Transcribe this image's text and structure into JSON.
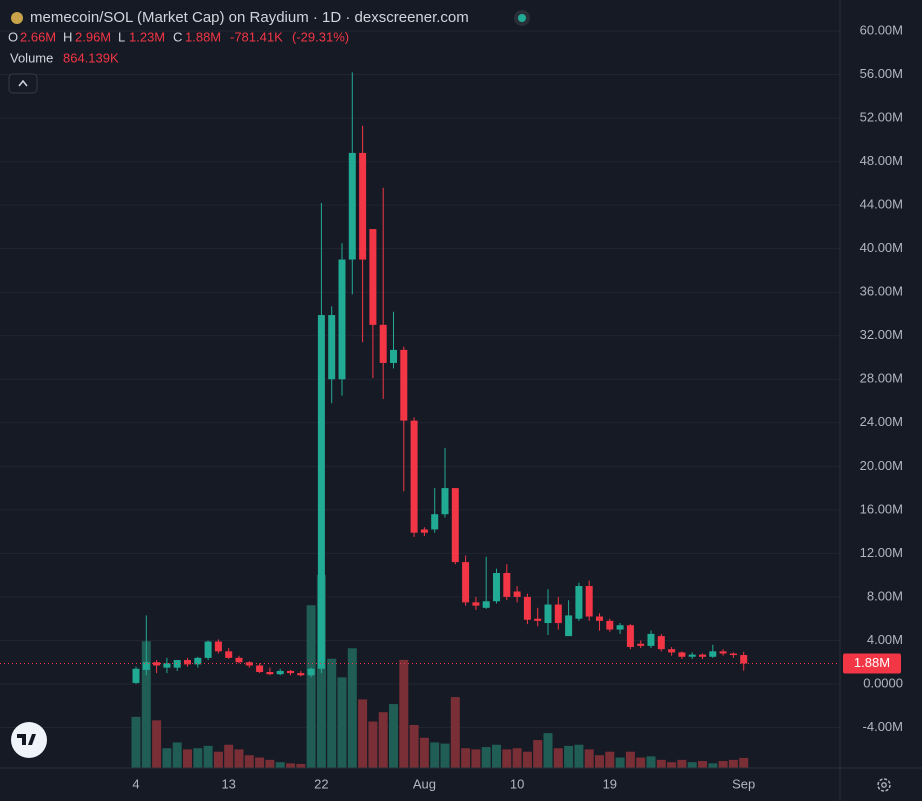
{
  "chart_data": {
    "type": "candlestick",
    "title": "memecoin/SOL (Market Cap) on Raydium · 1D · dexscreener.com",
    "legend_keys": {
      "open": "O",
      "high": "H",
      "low": "L",
      "close": "C",
      "volume": "Volume"
    },
    "legend": {
      "open": {
        "value": 2.66,
        "label": "2.66M"
      },
      "high": {
        "value": 2.96,
        "label": "2.96M"
      },
      "low": {
        "value": 1.23,
        "label": "1.23M"
      },
      "close": {
        "value": 1.88,
        "label": "1.88M"
      },
      "change": {
        "value": -0.78141,
        "label": "-781.41K"
      },
      "change_pct": {
        "value": -29.31,
        "label": "(-29.31%)"
      },
      "volume": {
        "value": 0.864139,
        "label": "864.139K"
      }
    },
    "last_price": {
      "value": 1.88,
      "label": "1.88M"
    },
    "up_color": "#22ab94",
    "down_color": "#f23645",
    "volume_up_color": "#1f5d55",
    "volume_down_color": "#7a2e35",
    "categories": [
      "4",
      null,
      null,
      null,
      null,
      null,
      null,
      null,
      null,
      "13",
      null,
      null,
      null,
      null,
      null,
      null,
      null,
      null,
      "22",
      null,
      null,
      null,
      null,
      null,
      null,
      null,
      null,
      null,
      "Aug",
      null,
      null,
      null,
      null,
      null,
      null,
      null,
      null,
      "10",
      null,
      null,
      null,
      null,
      null,
      null,
      null,
      null,
      "19",
      null,
      null,
      null,
      null,
      null,
      null,
      null,
      null,
      null,
      null,
      null,
      null,
      "Sep"
    ],
    "open": [
      0.1,
      1.3,
      2.0,
      1.5,
      1.5,
      2.2,
      1.8,
      2.4,
      3.9,
      3.0,
      2.4,
      2.0,
      1.7,
      1.1,
      0.9,
      1.2,
      1.0,
      0.8,
      1.4,
      28.0,
      28.0,
      39.0,
      48.8,
      41.8,
      33.0,
      29.5,
      30.7,
      24.2,
      14.2,
      14.2,
      15.6,
      18.0,
      11.2,
      7.5,
      7.0,
      7.6,
      10.2,
      8.5,
      8.0,
      6.0,
      5.6,
      7.3,
      4.4,
      6.0,
      9.0,
      6.2,
      5.8,
      5.0,
      5.4,
      3.7,
      3.5,
      4.4,
      3.2,
      2.9,
      2.5,
      2.7,
      2.5,
      3.0,
      2.8,
      2.66
    ],
    "high": [
      1.6,
      6.3,
      2.2,
      2.4,
      2.2,
      2.4,
      2.5,
      4.0,
      4.1,
      3.3,
      2.6,
      2.1,
      1.9,
      1.5,
      1.4,
      1.3,
      1.2,
      1.5,
      44.2,
      34.7,
      40.5,
      56.2,
      51.3,
      41.8,
      45.6,
      34.2,
      31.0,
      24.5,
      14.4,
      18.0,
      21.7,
      18.0,
      11.8,
      8.0,
      11.7,
      10.6,
      11.0,
      9.0,
      8.3,
      7.0,
      8.7,
      8.0,
      7.7,
      9.3,
      9.5,
      6.5,
      6.0,
      5.6,
      5.5,
      4.0,
      4.9,
      4.6,
      3.4,
      3.0,
      2.9,
      2.8,
      3.6,
      3.2,
      2.9,
      2.96
    ],
    "low": [
      0.0,
      0.8,
      1.0,
      1.0,
      1.2,
      1.6,
      1.5,
      2.2,
      2.8,
      2.3,
      1.9,
      1.5,
      1.0,
      0.8,
      0.8,
      0.8,
      0.7,
      0.6,
      1.0,
      25.8,
      26.5,
      35.8,
      31.4,
      28.1,
      26.2,
      29.0,
      17.7,
      13.5,
      13.6,
      13.9,
      15.3,
      11.0,
      7.2,
      6.8,
      6.9,
      7.4,
      7.7,
      7.5,
      5.5,
      5.3,
      4.5,
      5.0,
      4.4,
      5.8,
      5.8,
      4.9,
      4.8,
      4.6,
      3.2,
      3.3,
      3.3,
      3.0,
      2.6,
      2.3,
      2.3,
      2.3,
      2.4,
      2.6,
      2.4,
      1.23
    ],
    "close": [
      1.4,
      2.0,
      1.7,
      1.9,
      2.2,
      1.8,
      2.4,
      3.9,
      3.0,
      2.4,
      2.0,
      1.7,
      1.1,
      0.9,
      1.2,
      1.0,
      0.8,
      1.4,
      33.9,
      33.9,
      39.0,
      48.8,
      39.0,
      33.0,
      29.5,
      30.7,
      24.2,
      13.9,
      13.9,
      15.6,
      18.0,
      11.2,
      7.5,
      7.2,
      7.6,
      10.2,
      8.0,
      8.0,
      5.9,
      5.8,
      7.3,
      5.6,
      6.3,
      9.0,
      6.2,
      5.8,
      5.0,
      5.4,
      3.4,
      3.5,
      4.6,
      3.2,
      2.9,
      2.5,
      2.7,
      2.5,
      3.0,
      2.8,
      2.66,
      1.88
    ],
    "volume": [
      4.4,
      10.9,
      4.1,
      1.7,
      2.2,
      1.6,
      1.7,
      1.9,
      1.4,
      2.0,
      1.6,
      1.1,
      0.9,
      0.7,
      0.5,
      0.4,
      0.35,
      14.0,
      16.6,
      9.4,
      7.8,
      10.3,
      5.9,
      4.0,
      4.8,
      5.5,
      9.3,
      3.7,
      2.6,
      2.2,
      2.1,
      6.1,
      1.7,
      1.6,
      1.8,
      2.0,
      1.6,
      1.7,
      1.4,
      2.4,
      3.0,
      1.7,
      1.9,
      2.0,
      1.6,
      1.1,
      1.4,
      0.9,
      1.4,
      0.9,
      1.0,
      0.7,
      0.5,
      0.7,
      0.5,
      0.6,
      0.4,
      0.6,
      0.7,
      0.864139
    ],
    "ylim": [
      -7.72,
      62.85
    ],
    "yticks": [
      {
        "value": 60,
        "label": "60.00M"
      },
      {
        "value": 56,
        "label": "56.00M"
      },
      {
        "value": 52,
        "label": "52.00M"
      },
      {
        "value": 48,
        "label": "48.00M"
      },
      {
        "value": 44,
        "label": "44.00M"
      },
      {
        "value": 40,
        "label": "40.00M"
      },
      {
        "value": 36,
        "label": "36.00M"
      },
      {
        "value": 32,
        "label": "32.00M"
      },
      {
        "value": 28,
        "label": "28.00M"
      },
      {
        "value": 24,
        "label": "24.00M"
      },
      {
        "value": 20,
        "label": "20.00M"
      },
      {
        "value": 16,
        "label": "16.00M"
      },
      {
        "value": 12,
        "label": "12.00M"
      },
      {
        "value": 8,
        "label": "8.00M"
      },
      {
        "value": 4,
        "label": "4.00M"
      },
      {
        "value": 0,
        "label": "0.0000"
      },
      {
        "value": -4,
        "label": "-4.00M"
      }
    ],
    "grid": true
  }
}
